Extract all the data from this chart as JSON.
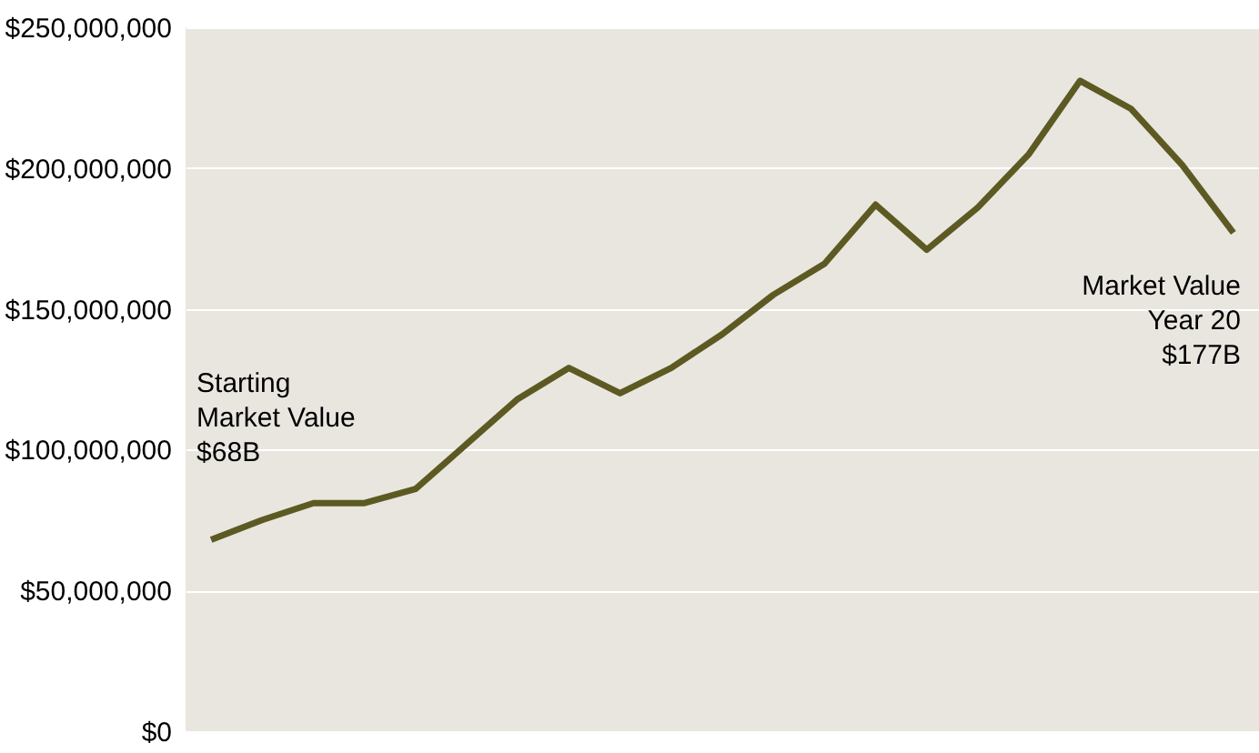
{
  "chart_data": {
    "type": "line",
    "categories": [
      null,
      null,
      null,
      null,
      null,
      null,
      null,
      null,
      null,
      null,
      null,
      null,
      null,
      null,
      null,
      null,
      null,
      null,
      null,
      null,
      null
    ],
    "series": [
      {
        "color": "#5c5a22",
        "values": [
          68000000,
          75000000,
          81000000,
          81000000,
          86000000,
          102000000,
          118000000,
          129000000,
          120000000,
          129000000,
          141000000,
          155000000,
          166000000,
          187000000,
          171000000,
          186000000,
          205000000,
          231000000,
          221000000,
          201000000,
          177000000
        ]
      }
    ],
    "ylim": [
      0,
      250000000
    ],
    "yticks": [
      {
        "value": 0,
        "label": "$0"
      },
      {
        "value": 50000000,
        "label": "$50,000,000"
      },
      {
        "value": 100000000,
        "label": "$100,000,000"
      },
      {
        "value": 150000000,
        "label": "$150,000,000"
      },
      {
        "value": 200000000,
        "label": "$200,000,000"
      },
      {
        "value": 250000000,
        "label": "$250,000,000"
      }
    ],
    "grid": "y",
    "tick_labels": "y",
    "legend": false,
    "marker": "none",
    "line_style": "solid",
    "annotations": [
      "Starting\nMarket Value\n$68B",
      "Market Value\nYear 20\n$177B"
    ]
  }
}
